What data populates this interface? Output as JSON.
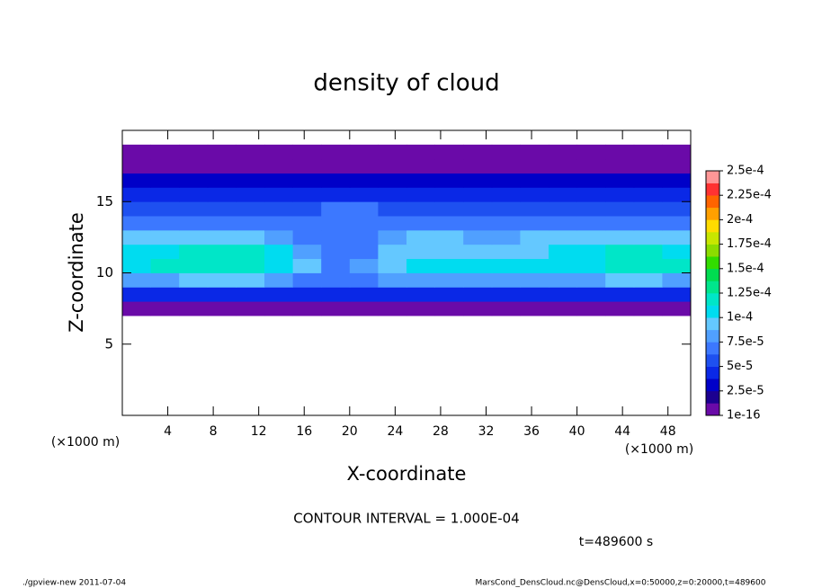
{
  "chart_data": {
    "type": "heatmap",
    "title": "density of cloud",
    "x_label": "X-coordinate",
    "y_label": "Z-coordinate",
    "x_unit_left": "(×1000 m)",
    "x_unit_right": "(×1000 m)",
    "contour_note": "CONTOUR INTERVAL = 1.000E-04",
    "time_note": "t=489600 s",
    "footer_left": "./gpview-new  2011-07-04",
    "footer_right": "MarsCond_DensCloud.nc@DensCloud,x=0:50000,z=0:20000,t=489600",
    "xlim": [
      0,
      50
    ],
    "xticks": [
      4,
      8,
      12,
      16,
      20,
      24,
      28,
      32,
      36,
      40,
      44,
      48
    ],
    "ylim": [
      0,
      20
    ],
    "yticks": [
      5,
      10,
      15
    ],
    "x_edges": [
      0,
      2.5,
      5,
      7.5,
      10,
      12.5,
      15,
      17.5,
      20,
      22.5,
      25,
      27.5,
      30,
      32.5,
      35,
      37.5,
      40,
      42.5,
      45,
      47.5,
      50
    ],
    "z_edges": [
      7,
      8,
      9,
      10,
      11,
      12,
      13,
      14,
      15,
      16,
      17,
      18,
      19
    ],
    "values": [
      [
        1e-05,
        1e-05,
        1e-05,
        1e-05,
        1e-05,
        1e-05,
        1e-05,
        1e-05,
        1e-05,
        1e-05,
        1e-05,
        1e-05,
        1e-05,
        1e-05,
        1e-05,
        1e-05,
        1e-05,
        1e-05,
        1e-05,
        1e-05
      ],
      [
        4e-05,
        4e-05,
        4e-05,
        4e-05,
        4e-05,
        4e-05,
        4e-05,
        4e-05,
        4e-05,
        4e-05,
        4e-05,
        4e-05,
        4e-05,
        4e-05,
        4e-05,
        4e-05,
        4e-05,
        4e-05,
        4e-05,
        4e-05
      ],
      [
        8e-05,
        8e-05,
        9e-05,
        9e-05,
        9e-05,
        8e-05,
        7e-05,
        7e-05,
        7e-05,
        8e-05,
        8e-05,
        8e-05,
        8e-05,
        8e-05,
        8e-05,
        8e-05,
        8e-05,
        9e-05,
        9e-05,
        8e-05
      ],
      [
        0.00011,
        0.00012,
        0.00012,
        0.00012,
        0.00012,
        0.00011,
        9e-05,
        7e-05,
        8e-05,
        0.0001,
        0.00011,
        0.00011,
        0.00011,
        0.00011,
        0.00011,
        0.00011,
        0.00011,
        0.00012,
        0.00012,
        0.00012
      ],
      [
        0.00011,
        0.00011,
        0.00012,
        0.00012,
        0.00012,
        0.00011,
        8e-05,
        7e-05,
        7e-05,
        9e-05,
        0.0001,
        0.0001,
        0.0001,
        0.0001,
        0.0001,
        0.00011,
        0.00011,
        0.00012,
        0.00012,
        0.00011
      ],
      [
        9e-05,
        9e-05,
        9e-05,
        9e-05,
        9e-05,
        8e-05,
        7e-05,
        7e-05,
        7e-05,
        8e-05,
        9e-05,
        9e-05,
        8e-05,
        8e-05,
        9e-05,
        9e-05,
        9e-05,
        9e-05,
        9e-05,
        9e-05
      ],
      [
        7e-05,
        7e-05,
        7e-05,
        7e-05,
        7e-05,
        7e-05,
        7e-05,
        7e-05,
        7e-05,
        7e-05,
        7e-05,
        7e-05,
        7e-05,
        7e-05,
        7e-05,
        7e-05,
        7e-05,
        7e-05,
        7e-05,
        7e-05
      ],
      [
        6e-05,
        6e-05,
        6e-05,
        6e-05,
        6e-05,
        6e-05,
        6e-05,
        7e-05,
        7e-05,
        6e-05,
        6e-05,
        6e-05,
        6e-05,
        6e-05,
        6e-05,
        6e-05,
        6e-05,
        6e-05,
        6e-05,
        6e-05
      ],
      [
        5e-05,
        5e-05,
        5e-05,
        5e-05,
        5e-05,
        5e-05,
        5e-05,
        5e-05,
        5e-05,
        5e-05,
        5e-05,
        5e-05,
        5e-05,
        5e-05,
        5e-05,
        5e-05,
        5e-05,
        5e-05,
        5e-05,
        5e-05
      ],
      [
        3e-05,
        3e-05,
        3e-05,
        3e-05,
        3e-05,
        3e-05,
        3e-05,
        3e-05,
        3e-05,
        3e-05,
        3e-05,
        3e-05,
        3e-05,
        3e-05,
        3e-05,
        3e-05,
        3e-05,
        3e-05,
        3e-05,
        3e-05
      ],
      [
        1e-05,
        1e-05,
        1e-05,
        1e-05,
        1e-05,
        1e-05,
        1e-05,
        1e-05,
        1e-05,
        1e-05,
        1e-05,
        1e-05,
        1e-05,
        1e-05,
        1e-05,
        1e-05,
        1e-05,
        1e-05,
        1e-05,
        1e-05
      ],
      [
        1e-05,
        1e-05,
        1e-05,
        1e-05,
        1e-05,
        1e-05,
        1e-05,
        1e-05,
        1e-05,
        1e-05,
        1e-05,
        1e-05,
        1e-05,
        1e-05,
        1e-05,
        1e-05,
        1e-05,
        1e-05,
        1e-05,
        1e-05
      ]
    ],
    "clim": [
      1e-16,
      0.00025
    ],
    "cticks": [
      {
        "value": 1e-16,
        "label": "1e-16"
      },
      {
        "value": 2.5e-05,
        "label": "2.5e-5"
      },
      {
        "value": 5e-05,
        "label": "5e-5"
      },
      {
        "value": 7.5e-05,
        "label": "7.5e-5"
      },
      {
        "value": 0.0001,
        "label": "1e-4"
      },
      {
        "value": 0.000125,
        "label": "1.25e-4"
      },
      {
        "value": 0.00015,
        "label": "1.5e-4"
      },
      {
        "value": 0.000175,
        "label": "1.75e-4"
      },
      {
        "value": 0.0002,
        "label": "2e-4"
      },
      {
        "value": 0.000225,
        "label": "2.25e-4"
      },
      {
        "value": 0.00025,
        "label": "2.5e-4"
      }
    ],
    "colors": [
      "#6a0aa8",
      "#1c0090",
      "#0000c8",
      "#0a28e6",
      "#1e50f0",
      "#3c78ff",
      "#50a0ff",
      "#64c8ff",
      "#00dcf0",
      "#00e6c8",
      "#00e68c",
      "#00dc50",
      "#32dc00",
      "#8cdc00",
      "#c8e600",
      "#ffdc00",
      "#ffa000",
      "#ff6400",
      "#ff3232",
      "#ff9696"
    ]
  }
}
